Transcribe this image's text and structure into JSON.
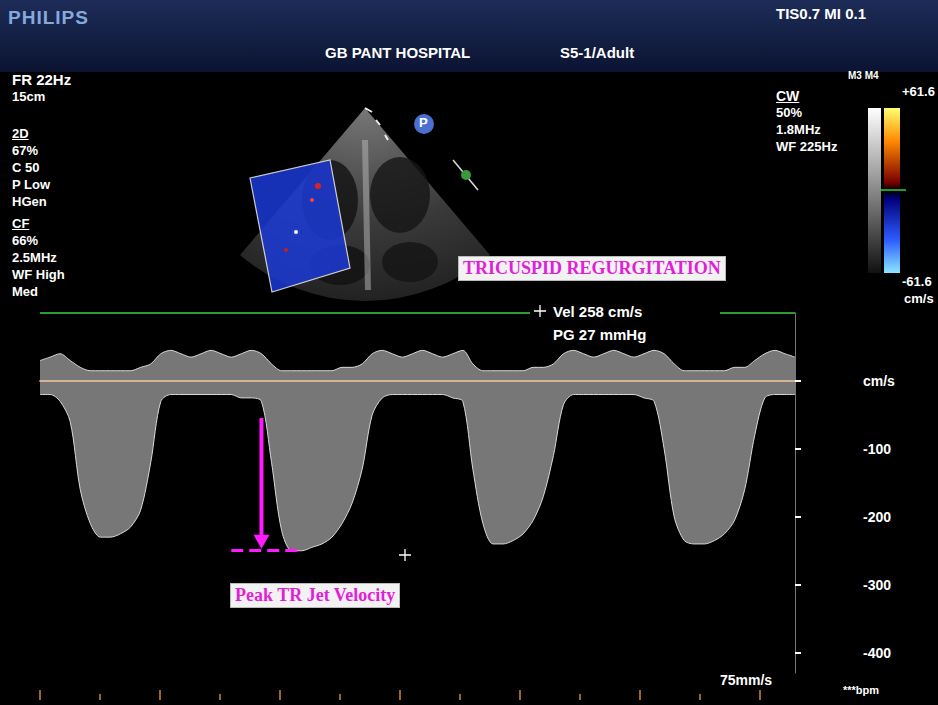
{
  "header": {
    "brand": "PHILIPS",
    "safety": "TIS0.7  MI 0.1",
    "hospital": "GB PANT HOSPITAL",
    "probe": "S5-1/Adult"
  },
  "left_panel": {
    "frame_rate": "FR 22Hz",
    "depth": "15cm",
    "mode_2d": {
      "title": "2D",
      "lines": [
        "67%",
        "C 50",
        "P Low",
        "HGen"
      ]
    },
    "mode_cf": {
      "title": "CF",
      "lines": [
        "66%",
        "2.5MHz",
        "WF High",
        "Med"
      ]
    }
  },
  "cw_panel": {
    "title": "CW",
    "lines": [
      "50%",
      "1.8MHz",
      "WF 225Hz"
    ]
  },
  "color_bar": {
    "modes": "M3 M4",
    "top_label": "+61.6",
    "bottom_label": "-61.6",
    "unit": "cm/s"
  },
  "icon": "P",
  "measurement": {
    "velocity": "Vel 258 cm/s",
    "gradient": "PG 27 mmHg"
  },
  "annotations": {
    "title": "TRICUSPID REGURGITATION",
    "arrow_label": "Peak TR Jet Velocity"
  },
  "footer": {
    "sweep": "75mm/s",
    "heart_rate": "***bpm"
  },
  "chart_data": {
    "type": "area",
    "categories": [
      null,
      null,
      null,
      null,
      null,
      null,
      null,
      null,
      null,
      null,
      null,
      null,
      null,
      null,
      null,
      null,
      null,
      null,
      null,
      null,
      null,
      null,
      null,
      null,
      null,
      null,
      null,
      null,
      null,
      null,
      null,
      null,
      null,
      null,
      null,
      null,
      null,
      null,
      null,
      null,
      null,
      null,
      null,
      null,
      null,
      null,
      null,
      null,
      null,
      null,
      null,
      null,
      null,
      null,
      null,
      null,
      null,
      null,
      null,
      null,
      null,
      null,
      null,
      null,
      null,
      null,
      null,
      null,
      null,
      null,
      null,
      null,
      null,
      null,
      null,
      null
    ],
    "series": [
      {
        "color": "#d9d9d9",
        "values": [
          -20,
          -20,
          -30,
          -60,
          -160,
          -210,
          -230,
          -230,
          -225,
          -215,
          -190,
          -120,
          -30,
          -20,
          -20,
          -20,
          -20,
          -20,
          -20,
          -20,
          -25,
          -25,
          -30,
          -120,
          -220,
          -250,
          -250,
          -245,
          -240,
          -230,
          -210,
          -180,
          -130,
          -50,
          -25,
          -20,
          -20,
          -20,
          -20,
          -20,
          -20,
          -25,
          -30,
          -130,
          -210,
          -240,
          -240,
          -235,
          -225,
          -205,
          -170,
          -110,
          -35,
          -20,
          -20,
          -20,
          -20,
          -20,
          -20,
          -20,
          -25,
          -30,
          -100,
          -200,
          -235,
          -240,
          -240,
          -235,
          -225,
          -205,
          -160,
          -80,
          -25,
          -20,
          -20,
          -20
        ]
      },
      {
        "color": "#d9d9d9",
        "values": [
          30,
          35,
          40,
          30,
          20,
          15,
          15,
          15,
          15,
          15,
          20,
          25,
          40,
          45,
          40,
          35,
          40,
          45,
          40,
          35,
          40,
          45,
          40,
          25,
          15,
          15,
          15,
          15,
          15,
          15,
          20,
          20,
          25,
          40,
          45,
          40,
          35,
          40,
          45,
          40,
          35,
          40,
          45,
          25,
          15,
          15,
          15,
          15,
          15,
          20,
          20,
          25,
          40,
          45,
          40,
          35,
          40,
          45,
          40,
          35,
          40,
          45,
          40,
          25,
          15,
          15,
          15,
          15,
          15,
          20,
          20,
          30,
          40,
          45,
          40,
          35
        ]
      }
    ],
    "ylim": [
      -430,
      100
    ],
    "yticks": [
      {
        "value": 0,
        "label": "cm/s"
      },
      -100,
      -200,
      -300,
      -400
    ],
    "tick_labels": "y",
    "peak_marker": -250
  }
}
